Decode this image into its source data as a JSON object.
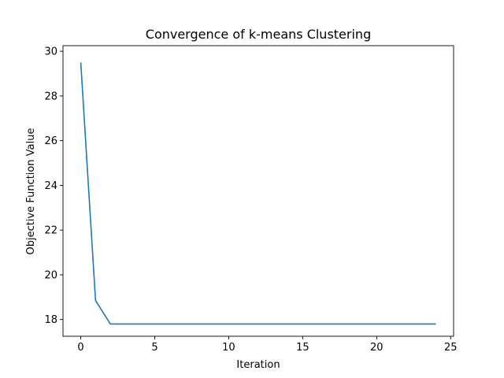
{
  "chart_data": {
    "type": "line",
    "title": "Convergence of k-means Clustering",
    "xlabel": "Iteration",
    "ylabel": "Objective Function Value",
    "xlim": [
      -1.2,
      25.2
    ],
    "ylim": [
      17.25,
      30.25
    ],
    "xticks": [
      0,
      5,
      10,
      15,
      20,
      25
    ],
    "yticks": [
      18,
      20,
      22,
      24,
      26,
      28,
      30
    ],
    "grid": false,
    "series": [
      {
        "color": "#1f77b4",
        "x": [
          0,
          1,
          2,
          3,
          4,
          5,
          6,
          7,
          8,
          9,
          10,
          11,
          12,
          13,
          14,
          15,
          16,
          17,
          18,
          19,
          20,
          21,
          22,
          23,
          24
        ],
        "y": [
          29.5,
          18.85,
          17.8,
          17.8,
          17.8,
          17.8,
          17.8,
          17.8,
          17.8,
          17.8,
          17.8,
          17.8,
          17.8,
          17.8,
          17.8,
          17.8,
          17.8,
          17.8,
          17.8,
          17.8,
          17.8,
          17.8,
          17.8,
          17.8,
          17.8
        ]
      }
    ]
  }
}
